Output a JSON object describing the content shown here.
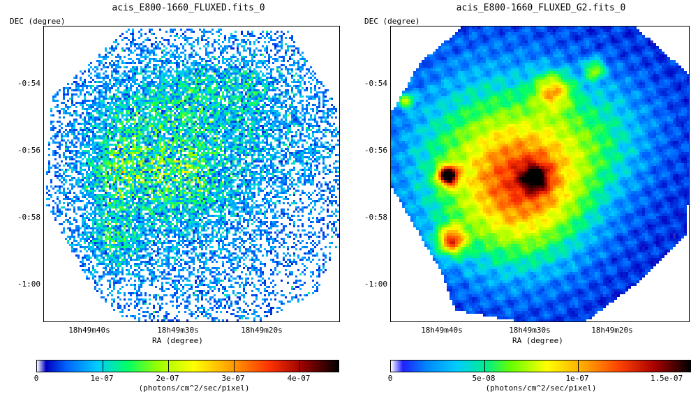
{
  "left_panel": {
    "title": "acis_E800-1660_FLUXED.fits_0",
    "y_axis_label": "DEC (degree)",
    "x_axis_label": "RA (degree)",
    "y_ticks": [
      "-0:54",
      "-0:56",
      "-0:58",
      "-1:00"
    ],
    "x_ticks": [
      "18h49m40s",
      "18h49m30s",
      "18h49m20s"
    ],
    "colorbar_ticks": [
      "0",
      "1e-07",
      "2e-07",
      "3e-07",
      "4e-07"
    ],
    "colorbar_unit": "(photons/cm^2/sec/pixel)"
  },
  "right_panel": {
    "title": "acis_E800-1660_FLUXED_G2.fits_0",
    "y_axis_label": "DEC (degree)",
    "x_axis_label": "RA (degree)",
    "y_ticks": [
      "-0:54",
      "-0:56",
      "-0:58",
      "-1:00"
    ],
    "x_ticks": [
      "18h49m40s",
      "18h49m30s",
      "18h49m20s"
    ],
    "colorbar_ticks": [
      "0",
      "5e-08",
      "1e-07",
      "1.5e-07"
    ],
    "colorbar_unit": "(photons/cm^2/sec/pixel)"
  },
  "colormap": [
    "#ffffff",
    "#0000c0",
    "#0066ff",
    "#00ccff",
    "#00ff66",
    "#99ff00",
    "#ffff00",
    "#ff9900",
    "#ff3300",
    "#990000",
    "#000000"
  ]
}
